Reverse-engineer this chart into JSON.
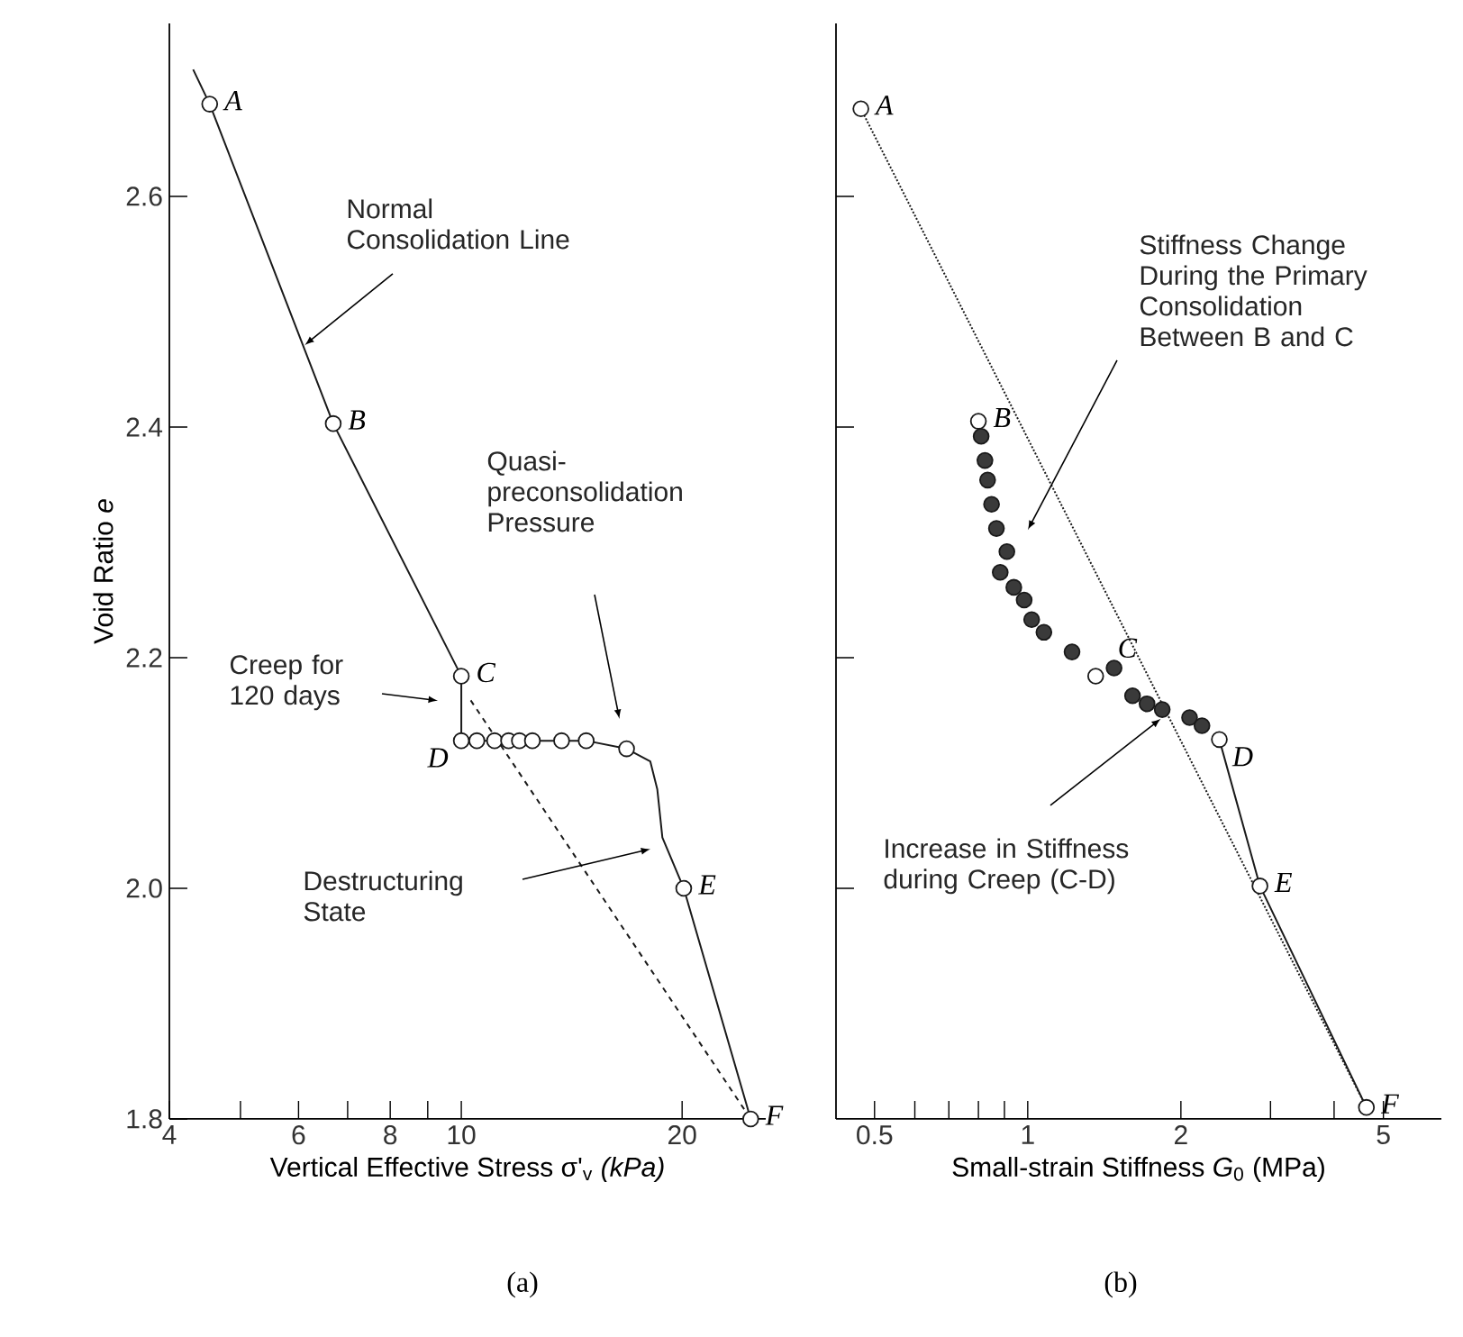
{
  "chart_data": [
    {
      "type": "line",
      "log": "x",
      "xlabel": "Vertical Effective Stress σ'$_{v}$ *(kPa)*",
      "ylabel": "Void Ratio *e*",
      "xlim": [
        4,
        26
      ],
      "ylim": [
        1.8,
        2.75
      ],
      "xticks": [
        4,
        {
          "value": 5,
          "label": null
        },
        6,
        {
          "value": 7,
          "label": null
        },
        8,
        {
          "value": 9,
          "label": null
        },
        10,
        20
      ],
      "yticks": [
        1.8,
        {
          "value": 2.0,
          "label": "2.0"
        },
        2.2,
        2.4,
        2.6
      ],
      "series": [
        {
          "marker": "none",
          "line_style": "solid",
          "color": "#1a1a1a",
          "x": [
            4.31,
            4.54,
            6.69,
            10,
            10,
            10.5,
            11.1,
            11.6,
            12.0,
            12.5,
            13.7,
            14.8,
            16.8,
            18.1,
            18.5,
            18.8,
            20.1,
            24.8
          ],
          "values": [
            2.71,
            2.68,
            2.403,
            2.184,
            2.128,
            2.128,
            2.128,
            2.128,
            2.128,
            2.128,
            2.128,
            2.128,
            2.121,
            2.11,
            2.086,
            2.044,
            2.0,
            1.8
          ]
        },
        {
          "marker": "none",
          "line_style": "dashed",
          "color": "#1a1a1a",
          "x": [
            10.3,
            24.8
          ],
          "values": [
            2.163,
            1.8
          ]
        },
        {
          "type": "scatter",
          "marker": "circle",
          "color": "#ffffff",
          "x": [
            4.54,
            6.69,
            10,
            10,
            10.5,
            11.1,
            11.6,
            12.0,
            12.5,
            13.7,
            14.8,
            16.8,
            20.1,
            24.8
          ],
          "values": [
            2.68,
            2.403,
            2.184,
            2.128,
            2.128,
            2.128,
            2.128,
            2.128,
            2.128,
            2.128,
            2.128,
            2.121,
            2.0,
            1.8
          ]
        }
      ],
      "annotations": [
        {
          "text": "A",
          "x": 4.54,
          "y": 2.68
        },
        {
          "text": "B",
          "x": 6.69,
          "y": 2.403
        },
        {
          "text": "C",
          "x": 10,
          "y": 2.184
        },
        {
          "text": "D",
          "x": 10,
          "y": 2.128
        },
        {
          "text": "E",
          "x": 20.1,
          "y": 2.0
        },
        {
          "text": "F",
          "x": 24.8,
          "y": 1.8
        },
        {
          "text": "Normal Consolidation Line",
          "x": 6.09,
          "y": 2.47
        },
        "Quasi-preconsolidation Pressure",
        "Creep for 120 days",
        "Destructuring State",
        "(a)"
      ]
    },
    {
      "type": "line",
      "log": "x",
      "xlabel": "Small-strain Stiffness *G*$_{0}$ (MPa)",
      "tick_labels": "x",
      "xlim": [
        0.42,
        6.5
      ],
      "ylim": [
        1.8,
        2.75
      ],
      "xticks": [
        0.5,
        {
          "value": 0.6,
          "label": null
        },
        {
          "value": 0.7,
          "label": null
        },
        {
          "value": 0.8,
          "label": null
        },
        {
          "value": 0.9,
          "label": null
        },
        1,
        2,
        {
          "value": 3,
          "label": null
        },
        {
          "value": 4,
          "label": null
        },
        5
      ],
      "yticks": [
        2.0,
        2.2,
        2.4,
        2.6
      ],
      "series": [
        {
          "marker": "none",
          "line_style": "dotted",
          "color": "#1a1a1a",
          "x": [
            0.47,
            4.63
          ],
          "values": [
            2.676,
            1.81
          ]
        },
        {
          "marker": "none",
          "line_style": "solid",
          "color": "#1a1a1a",
          "x": [
            2.38,
            2.86,
            4.63
          ],
          "values": [
            2.129,
            2.002,
            1.81
          ]
        },
        {
          "type": "scatter",
          "marker": "circle",
          "color": "#3a3a3a",
          "x": [
            0.81,
            0.824,
            0.834,
            0.849,
            0.868,
            0.91,
            0.883,
            0.939,
            0.984,
            1.018,
            1.076,
            1.222,
            1.478,
            1.607,
            1.716,
            1.838,
            2.08,
            2.2
          ],
          "values": [
            2.392,
            2.371,
            2.354,
            2.333,
            2.312,
            2.292,
            2.274,
            2.261,
            2.25,
            2.233,
            2.222,
            2.205,
            2.191,
            2.167,
            2.16,
            2.155,
            2.148,
            2.141
          ]
        },
        {
          "type": "scatter",
          "marker": "circle",
          "color": "#ffffff",
          "x": [
            0.47,
            0.8,
            1.36,
            2.38,
            2.86,
            4.63
          ],
          "values": [
            2.676,
            2.405,
            2.184,
            2.129,
            2.002,
            1.81
          ]
        }
      ],
      "annotations": [
        {
          "text": "A",
          "x": 0.47,
          "y": 2.676
        },
        {
          "text": "B",
          "x": 0.8,
          "y": 2.405
        },
        {
          "text": "C",
          "x": 1.36,
          "y": 2.184
        },
        {
          "text": "D",
          "x": 2.38,
          "y": 2.129
        },
        {
          "text": "E",
          "x": 2.86,
          "y": 2.002
        },
        {
          "text": "F",
          "x": 4.63,
          "y": 1.81
        },
        "Stiffness Change During the Primary Consolidation Between B and C",
        {
          "text": "Increase in Stiffness during Creep (C-D)",
          "x": 1.838,
          "y": 2.148
        },
        "(b)"
      ]
    }
  ]
}
